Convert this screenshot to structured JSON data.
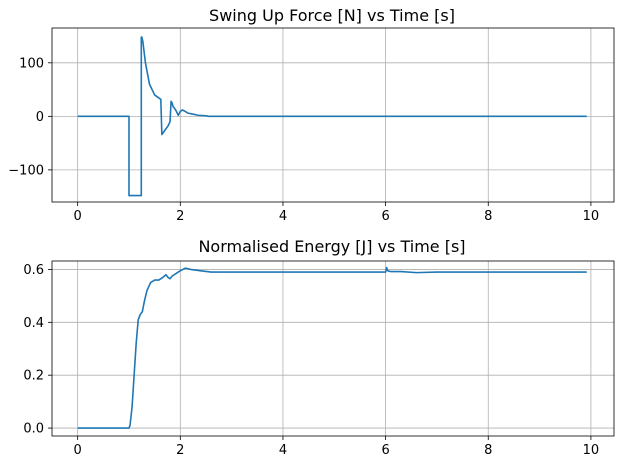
{
  "colors": {
    "series": "#1f77b4",
    "grid": "#b0b0b0"
  },
  "chart_data": [
    {
      "type": "line",
      "title": "Swing Up Force [N] vs Time [s]",
      "xlabel": "",
      "ylabel": "",
      "xlim": [
        -0.5,
        10.45
      ],
      "ylim": [
        -160,
        165
      ],
      "xticks": [
        0,
        2,
        4,
        6,
        8,
        10
      ],
      "yticks": [
        -100,
        0,
        100
      ],
      "ytick_labels": [
        "−100",
        "0",
        "100"
      ],
      "grid": true,
      "series": [
        {
          "x": [
            0,
            1.0,
            1.0,
            1.24,
            1.24,
            1.25,
            1.27,
            1.32,
            1.4,
            1.5,
            1.6,
            1.62,
            1.63,
            1.64,
            1.7,
            1.76,
            1.8,
            1.82,
            1.84,
            1.86,
            1.88,
            1.92,
            1.96,
            2.0,
            2.04,
            2.08,
            2.15,
            2.25,
            2.35,
            2.5,
            2.55,
            9.92
          ],
          "y": [
            0,
            0,
            -148,
            -148,
            148,
            148,
            140,
            100,
            60,
            40,
            33,
            32,
            0,
            -34,
            -26,
            -18,
            -10,
            28,
            25,
            18,
            16,
            10,
            2,
            9,
            12,
            10,
            6,
            4,
            2,
            1,
            0,
            0
          ]
        }
      ]
    },
    {
      "type": "line",
      "title": "Normalised Energy [J] vs Time [s]",
      "xlabel": "",
      "ylabel": "",
      "xlim": [
        -0.5,
        10.45
      ],
      "ylim": [
        -0.03,
        0.632
      ],
      "xticks": [
        0,
        2,
        4,
        6,
        8,
        10
      ],
      "yticks": [
        0.0,
        0.2,
        0.4,
        0.6
      ],
      "ytick_labels": [
        "0.0",
        "0.2",
        "0.4",
        "0.6"
      ],
      "grid": true,
      "series": [
        {
          "x": [
            0,
            1.0,
            1.02,
            1.06,
            1.1,
            1.14,
            1.18,
            1.22,
            1.26,
            1.3,
            1.35,
            1.42,
            1.5,
            1.58,
            1.66,
            1.72,
            1.76,
            1.8,
            1.84,
            1.88,
            1.92,
            1.96,
            2.0,
            2.05,
            2.1,
            2.2,
            2.4,
            2.6,
            3.0,
            4.0,
            5.0,
            6.0,
            6.02,
            6.04,
            6.1,
            6.3,
            6.6,
            7.0,
            8.0,
            9.0,
            9.92
          ],
          "y": [
            0,
            0,
            0.01,
            0.08,
            0.2,
            0.32,
            0.41,
            0.43,
            0.44,
            0.48,
            0.52,
            0.55,
            0.56,
            0.56,
            0.57,
            0.58,
            0.57,
            0.565,
            0.575,
            0.58,
            0.585,
            0.59,
            0.595,
            0.6,
            0.605,
            0.6,
            0.595,
            0.59,
            0.59,
            0.59,
            0.59,
            0.59,
            0.607,
            0.595,
            0.592,
            0.592,
            0.588,
            0.59,
            0.59,
            0.59,
            0.59
          ]
        }
      ]
    }
  ]
}
